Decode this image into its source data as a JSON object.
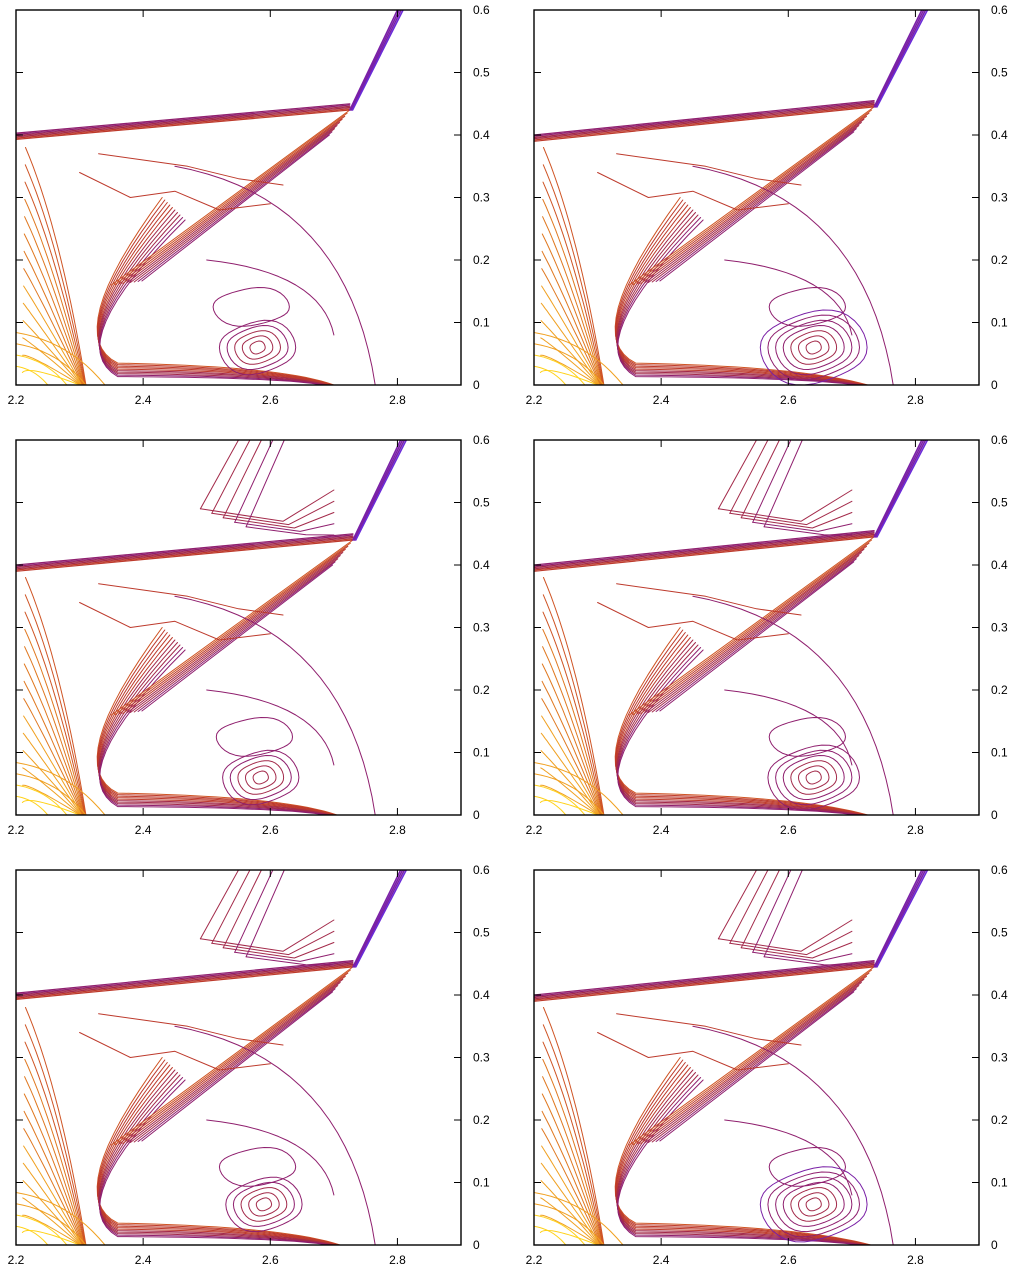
{
  "figure": {
    "palette": [
      "#ffd21a",
      "#f0a020",
      "#e07820",
      "#cf5424",
      "#bd3a2c",
      "#a32a4a",
      "#8f1f6e",
      "#7a20a6",
      "#6a2ad8"
    ]
  },
  "chart_data": [
    {
      "type": "contour",
      "panel": "top-left",
      "xlim": [
        2.2,
        2.9
      ],
      "ylim": [
        0,
        0.6
      ],
      "xticks": [
        {
          "value": 2.2,
          "label": "2.2"
        },
        {
          "value": 2.4,
          "label": "2.4"
        },
        {
          "value": 2.6,
          "label": "2.6"
        },
        {
          "value": 2.8,
          "label": "2.8"
        }
      ],
      "yticks": [
        {
          "value": 0,
          "label": "0"
        },
        {
          "value": 0.1,
          "label": "0.1"
        },
        {
          "value": 0.2,
          "label": "0.2"
        },
        {
          "value": 0.3,
          "label": "0.3"
        },
        {
          "value": 0.4,
          "label": "0.4"
        },
        {
          "value": 0.5,
          "label": "0.5"
        },
        {
          "value": 0.6,
          "label": "0.6"
        }
      ],
      "yaxis_side": "right",
      "features": {
        "triple_point": [
          2.725,
          0.44
        ],
        "mach_stem_foot_x": 2.775,
        "top_shock_end_x": 2.8,
        "left_shock_y": 0.393,
        "vortex_center": [
          2.58,
          0.06
        ],
        "vortex_rings": 5,
        "roll_up_x": 2.7,
        "slip_line_left_x": 2.45,
        "upper_wave": false
      }
    },
    {
      "type": "contour",
      "panel": "top-right",
      "xlim": [
        2.2,
        2.9
      ],
      "ylim": [
        0,
        0.6
      ],
      "xticks": [
        {
          "value": 2.2,
          "label": "2.2"
        },
        {
          "value": 2.4,
          "label": "2.4"
        },
        {
          "value": 2.6,
          "label": "2.6"
        },
        {
          "value": 2.8,
          "label": "2.8"
        }
      ],
      "yticks": [
        {
          "value": 0,
          "label": "0"
        },
        {
          "value": 0.1,
          "label": "0.1"
        },
        {
          "value": 0.2,
          "label": "0.2"
        },
        {
          "value": 0.3,
          "label": "0.3"
        },
        {
          "value": 0.4,
          "label": "0.4"
        },
        {
          "value": 0.5,
          "label": "0.5"
        },
        {
          "value": 0.6,
          "label": "0.6"
        }
      ],
      "yaxis_side": "right",
      "features": {
        "triple_point": [
          2.735,
          0.445
        ],
        "mach_stem_foot_x": 2.785,
        "top_shock_end_x": 2.81,
        "left_shock_y": 0.39,
        "vortex_center": [
          2.64,
          0.06
        ],
        "vortex_rings": 7,
        "roll_up_x": 2.725,
        "slip_line_left_x": 2.45,
        "upper_wave": false
      }
    },
    {
      "type": "contour",
      "panel": "middle-left",
      "xlim": [
        2.2,
        2.9
      ],
      "ylim": [
        0,
        0.6
      ],
      "xticks": [
        {
          "value": 2.2,
          "label": "2.2"
        },
        {
          "value": 2.4,
          "label": "2.4"
        },
        {
          "value": 2.6,
          "label": "2.6"
        },
        {
          "value": 2.8,
          "label": "2.8"
        }
      ],
      "yticks": [
        {
          "value": 0,
          "label": "0"
        },
        {
          "value": 0.1,
          "label": "0.1"
        },
        {
          "value": 0.2,
          "label": "0.2"
        },
        {
          "value": 0.3,
          "label": "0.3"
        },
        {
          "value": 0.4,
          "label": "0.4"
        },
        {
          "value": 0.5,
          "label": "0.5"
        },
        {
          "value": 0.6,
          "label": "0.6"
        }
      ],
      "yaxis_side": "right",
      "features": {
        "triple_point": [
          2.73,
          0.44
        ],
        "mach_stem_foot_x": 2.778,
        "top_shock_end_x": 2.805,
        "left_shock_y": 0.39,
        "vortex_center": [
          2.585,
          0.06
        ],
        "vortex_rings": 5,
        "roll_up_x": 2.705,
        "slip_line_left_x": 2.45,
        "upper_wave": true
      }
    },
    {
      "type": "contour",
      "panel": "middle-right",
      "xlim": [
        2.2,
        2.9
      ],
      "ylim": [
        0,
        0.6
      ],
      "xticks": [
        {
          "value": 2.2,
          "label": "2.2"
        },
        {
          "value": 2.4,
          "label": "2.4"
        },
        {
          "value": 2.6,
          "label": "2.6"
        },
        {
          "value": 2.8,
          "label": "2.8"
        }
      ],
      "yticks": [
        {
          "value": 0,
          "label": "0"
        },
        {
          "value": 0.1,
          "label": "0.1"
        },
        {
          "value": 0.2,
          "label": "0.2"
        },
        {
          "value": 0.3,
          "label": "0.3"
        },
        {
          "value": 0.4,
          "label": "0.4"
        },
        {
          "value": 0.5,
          "label": "0.5"
        },
        {
          "value": 0.6,
          "label": "0.6"
        }
      ],
      "yaxis_side": "right",
      "features": {
        "triple_point": [
          2.735,
          0.445
        ],
        "mach_stem_foot_x": 2.785,
        "top_shock_end_x": 2.81,
        "left_shock_y": 0.39,
        "vortex_center": [
          2.64,
          0.06
        ],
        "vortex_rings": 6,
        "roll_up_x": 2.725,
        "slip_line_left_x": 2.45,
        "upper_wave": true
      }
    },
    {
      "type": "contour",
      "panel": "bottom-left",
      "xlim": [
        2.2,
        2.9
      ],
      "ylim": [
        0,
        0.6
      ],
      "xticks": [
        {
          "value": 2.2,
          "label": "2.2"
        },
        {
          "value": 2.4,
          "label": "2.4"
        },
        {
          "value": 2.6,
          "label": "2.6"
        },
        {
          "value": 2.8,
          "label": "2.8"
        }
      ],
      "yticks": [
        {
          "value": 0,
          "label": "0"
        },
        {
          "value": 0.1,
          "label": "0.1"
        },
        {
          "value": 0.2,
          "label": "0.2"
        },
        {
          "value": 0.3,
          "label": "0.3"
        },
        {
          "value": 0.4,
          "label": "0.4"
        },
        {
          "value": 0.5,
          "label": "0.5"
        },
        {
          "value": 0.6,
          "label": "0.6"
        }
      ],
      "yaxis_side": "right",
      "features": {
        "triple_point": [
          2.73,
          0.445
        ],
        "mach_stem_foot_x": 2.778,
        "top_shock_end_x": 2.805,
        "left_shock_y": 0.393,
        "vortex_center": [
          2.59,
          0.065
        ],
        "vortex_rings": 5,
        "roll_up_x": 2.71,
        "slip_line_left_x": 2.45,
        "upper_wave": true
      }
    },
    {
      "type": "contour",
      "panel": "bottom-right",
      "xlim": [
        2.2,
        2.9
      ],
      "ylim": [
        0,
        0.6
      ],
      "xticks": [
        {
          "value": 2.2,
          "label": "2.2"
        },
        {
          "value": 2.4,
          "label": "2.4"
        },
        {
          "value": 2.6,
          "label": "2.6"
        },
        {
          "value": 2.8,
          "label": "2.8"
        }
      ],
      "yticks": [
        {
          "value": 0,
          "label": "0"
        },
        {
          "value": 0.1,
          "label": "0.1"
        },
        {
          "value": 0.2,
          "label": "0.2"
        },
        {
          "value": 0.3,
          "label": "0.3"
        },
        {
          "value": 0.4,
          "label": "0.4"
        },
        {
          "value": 0.5,
          "label": "0.5"
        },
        {
          "value": 0.6,
          "label": "0.6"
        }
      ],
      "yaxis_side": "right",
      "features": {
        "triple_point": [
          2.735,
          0.445
        ],
        "mach_stem_foot_x": 2.785,
        "top_shock_end_x": 2.81,
        "left_shock_y": 0.39,
        "vortex_center": [
          2.64,
          0.065
        ],
        "vortex_rings": 7,
        "roll_up_x": 2.73,
        "slip_line_left_x": 2.45,
        "upper_wave": true
      }
    }
  ]
}
